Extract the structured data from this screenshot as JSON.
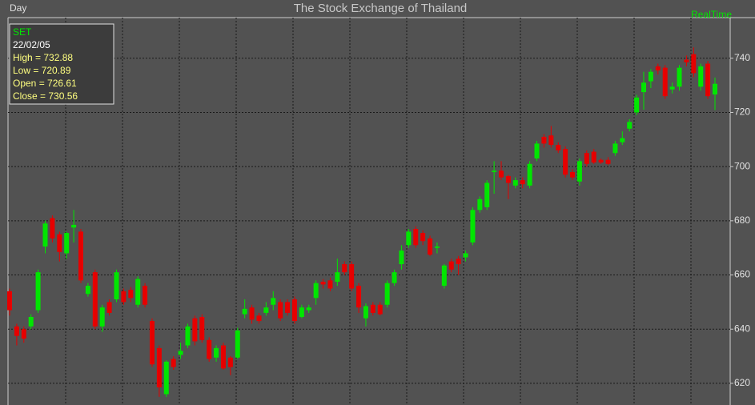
{
  "chart_data": {
    "type": "candlestick",
    "title": "The Stock Exchange of Thailand",
    "period": "Day",
    "mode": "RealTime",
    "info": {
      "symbol": "SET",
      "date": "22/02/05",
      "lines": [
        "High  = 732.88",
        "Low  = 720.89",
        "Open = 726.61",
        "Close = 730.56"
      ]
    },
    "up_color": "#00e600",
    "down_color": "#e60000",
    "ylim": [
      612,
      755
    ],
    "yticks": [
      620,
      640,
      660,
      680,
      700,
      720,
      740
    ],
    "grid": true,
    "open": [
      654,
      641,
      640,
      641,
      647,
      670.5,
      681,
      675,
      668,
      677.5,
      676,
      653,
      661,
      641,
      650,
      651,
      654,
      654.5,
      649,
      656,
      643,
      633,
      616,
      629,
      630.5,
      634,
      644,
      644.5,
      636,
      629.5,
      634,
      629.5,
      629.5,
      645.5,
      648,
      645,
      646,
      649,
      650,
      650,
      651,
      644.5,
      647,
      651.5,
      657.5,
      658,
      657.5,
      664,
      664,
      656,
      644,
      649,
      649,
      649,
      657,
      664,
      671,
      677,
      675.5,
      673.5,
      670,
      656,
      665,
      666,
      666.5,
      672,
      684,
      685,
      698,
      698.5,
      696.5,
      693,
      695,
      693,
      703,
      711,
      711.5,
      708,
      706.5,
      698,
      694.5,
      705,
      705.5,
      702.5,
      702.5,
      705,
      709,
      714,
      720,
      727.5,
      731.5,
      737,
      736.5,
      728.5,
      729.5,
      739.5,
      741.5,
      729.5,
      738,
      726.61
    ],
    "high": [
      655,
      642,
      641,
      645.5,
      662,
      680,
      682,
      676,
      676,
      684,
      677,
      657,
      662,
      649,
      651,
      662,
      655,
      655.5,
      659.5,
      657,
      644,
      634,
      628.5,
      630,
      635,
      642,
      645,
      645.5,
      637,
      634,
      635,
      630,
      640.5,
      651,
      649,
      646,
      650,
      654,
      651,
      651,
      652,
      649,
      649,
      658,
      658.5,
      659,
      666,
      665,
      665,
      657,
      649.5,
      650,
      650,
      658,
      662,
      671,
      677,
      678,
      676.5,
      674.5,
      672,
      664,
      666,
      667,
      669,
      685,
      689,
      695,
      702,
      702,
      697,
      696,
      696,
      702,
      709.5,
      712,
      715,
      709,
      707.5,
      699,
      703,
      706,
      706.5,
      703,
      703.5,
      709.5,
      713,
      717.5,
      726.5,
      735,
      736,
      738,
      737.5,
      731,
      737.5,
      741,
      744,
      738,
      739,
      732.88
    ],
    "low": [
      645,
      634,
      635,
      640,
      646,
      668,
      672,
      665,
      666,
      672,
      657,
      652,
      640,
      639,
      645,
      650,
      649,
      650,
      648,
      648,
      626,
      615,
      615,
      625,
      629,
      633,
      634,
      635,
      628,
      628,
      625,
      623,
      629,
      644,
      642,
      642,
      645,
      647,
      643,
      645,
      642,
      644,
      646,
      649,
      655,
      654,
      656,
      660,
      654,
      646,
      641,
      645,
      645,
      648,
      656,
      662,
      670,
      670,
      671,
      667,
      668,
      655,
      661,
      660,
      665,
      671,
      683,
      684,
      690,
      695,
      688,
      692,
      692,
      692,
      702,
      707,
      707,
      705,
      696,
      695,
      693,
      700,
      701,
      701,
      700.5,
      704,
      708,
      713,
      719,
      721,
      729,
      734,
      725,
      727,
      728,
      737,
      733,
      728,
      725,
      720.89
    ],
    "close": [
      647,
      637.5,
      636.5,
      644.5,
      661,
      679,
      673.5,
      668.5,
      675.5,
      678.5,
      658,
      656,
      641,
      648,
      646,
      661,
      650,
      651.5,
      658.5,
      649,
      627,
      618.5,
      628,
      626,
      632,
      641,
      635.5,
      636,
      629,
      633,
      625.5,
      626,
      639.5,
      647.5,
      643.5,
      643,
      648,
      651.5,
      644,
      646,
      643,
      648,
      648,
      657,
      656.5,
      655,
      661,
      661,
      655,
      648,
      648.5,
      646,
      645.5,
      657,
      661,
      669,
      676,
      671,
      672.5,
      667.5,
      670.5,
      663.5,
      662,
      664,
      668,
      684,
      688,
      694,
      698.5,
      696,
      694,
      695,
      693.5,
      701,
      708.5,
      708.5,
      708,
      706,
      697,
      696,
      702,
      701,
      701.5,
      701.5,
      701,
      708.5,
      710.5,
      716.5,
      725.5,
      731,
      735,
      735.5,
      726,
      729.5,
      736.5,
      738.5,
      734.5,
      737,
      726,
      730.56
    ]
  }
}
